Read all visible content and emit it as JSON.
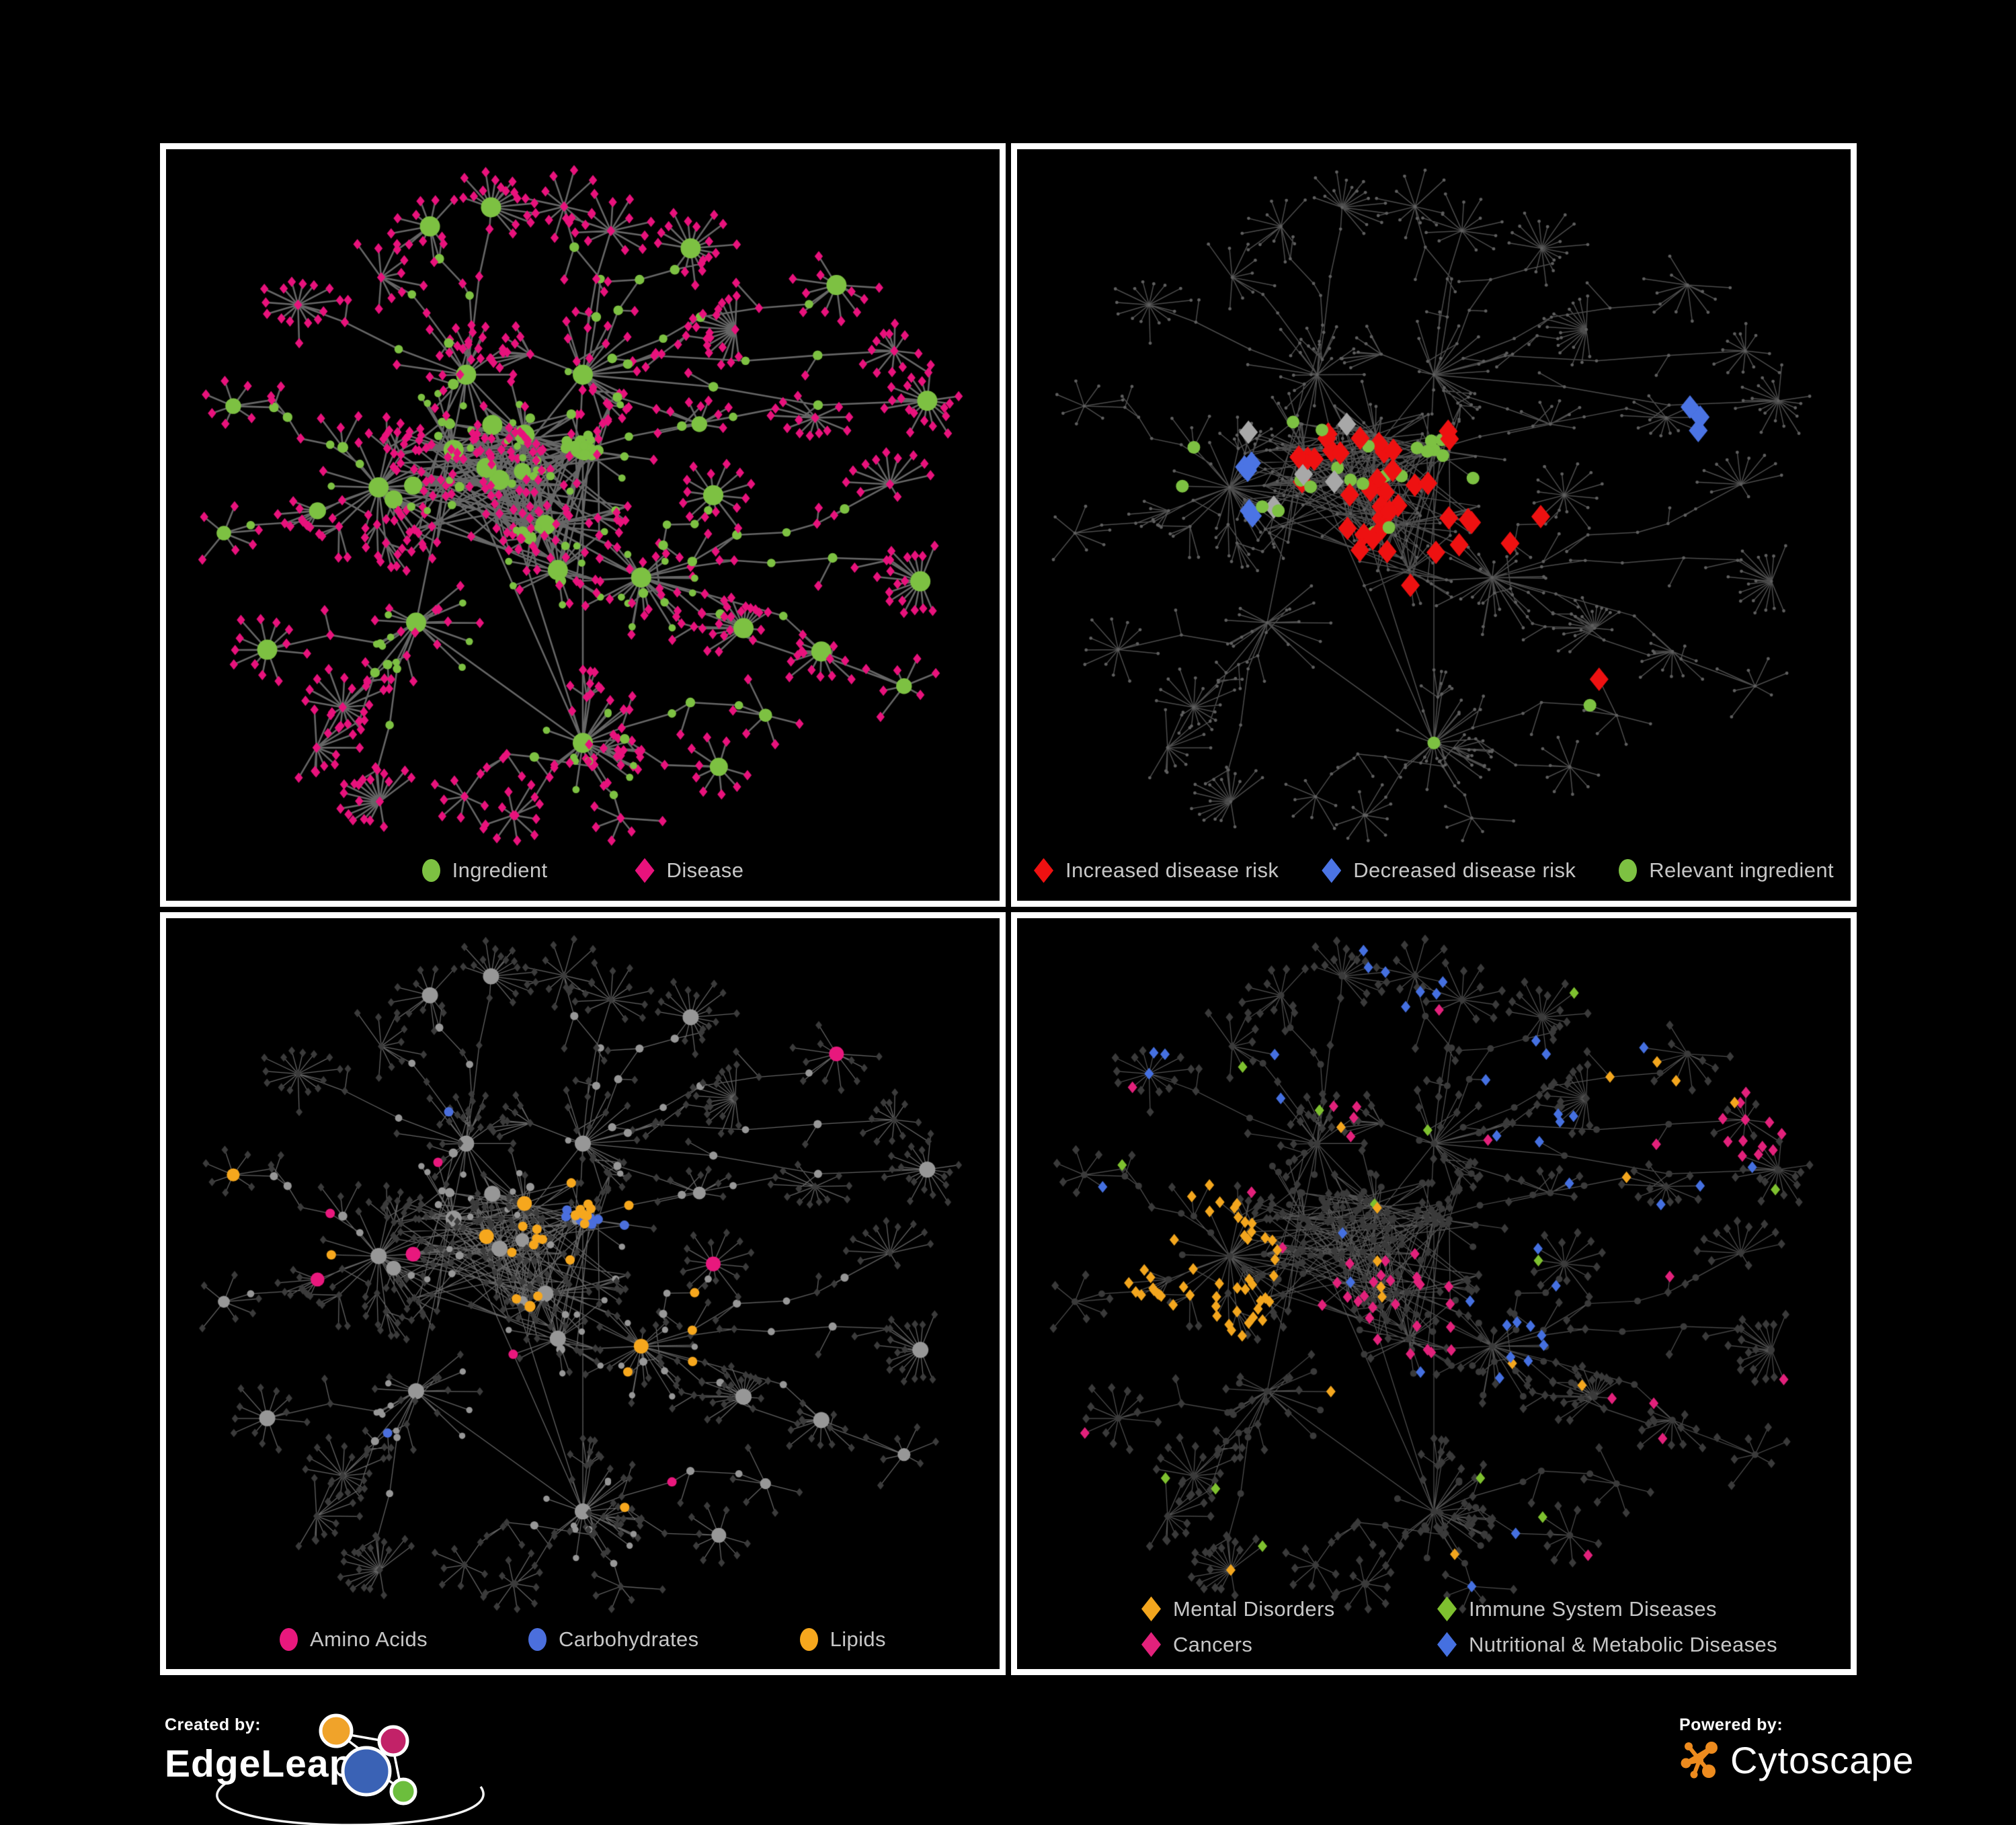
{
  "poster": {
    "background": "#000000",
    "panel_border_color": "#ffffff",
    "legend_text_color": "#c7c7c7"
  },
  "panels": [
    {
      "legend": [
        {
          "label": "Ingredient",
          "shape": "ellipse",
          "color": "#7dc142"
        },
        {
          "label": "Disease",
          "shape": "diamond",
          "color": "#e8127c"
        }
      ],
      "style": {
        "edge_color": "#6b6b6b",
        "ingredient_color": "#7dc142",
        "disease_color": "#e8127c"
      }
    },
    {
      "legend": [
        {
          "label": "Increased disease risk",
          "shape": "diamond",
          "color": "#ee1111"
        },
        {
          "label": "Decreased disease risk",
          "shape": "diamond",
          "color": "#4b74e4"
        },
        {
          "label": "Relevant ingredient",
          "shape": "ellipse",
          "color": "#7dc142"
        }
      ],
      "style": {
        "edge_color": "#5a5a5a",
        "base_node_color": "#5f5f5f",
        "unlabeled_diamond_color": "#a8a8a8"
      }
    },
    {
      "legend": [
        {
          "label": "Amino Acids",
          "shape": "ellipse",
          "color": "#e8187d"
        },
        {
          "label": "Carbohydrates",
          "shape": "ellipse",
          "color": "#4b6fdd"
        },
        {
          "label": "Lipids",
          "shape": "ellipse",
          "color": "#f6a71d"
        }
      ],
      "style": {
        "edge_color": "#8d8d8d",
        "base_ingredient_color": "#979797",
        "base_disease_color": "#3b3b3b"
      }
    },
    {
      "legend": [
        {
          "label": "Mental Disorders",
          "shape": "diamond",
          "color": "#f3a61e"
        },
        {
          "label": "Immune System Diseases",
          "shape": "diamond",
          "color": "#7ec02f"
        },
        {
          "label": "Cancers",
          "shape": "diamond",
          "color": "#e2217b"
        },
        {
          "label": "Nutritional & Metabolic Diseases",
          "shape": "diamond",
          "color": "#4570e0"
        }
      ],
      "style": {
        "edge_color": "#6e6e6e",
        "base_node_color": "#3a3a3a"
      }
    }
  ],
  "footer": {
    "created_by": {
      "label": "Created by:",
      "name": "EdgeLeap"
    },
    "powered_by": {
      "label": "Powered by:",
      "name": "Cytoscape"
    },
    "cytoscape_logo_color": "#ed8b1e",
    "edgeleap_logo_colors": {
      "orange": "#f0a32a",
      "magenta": "#c22268",
      "blue": "#3a62b5",
      "green": "#6cbe3d"
    }
  }
}
